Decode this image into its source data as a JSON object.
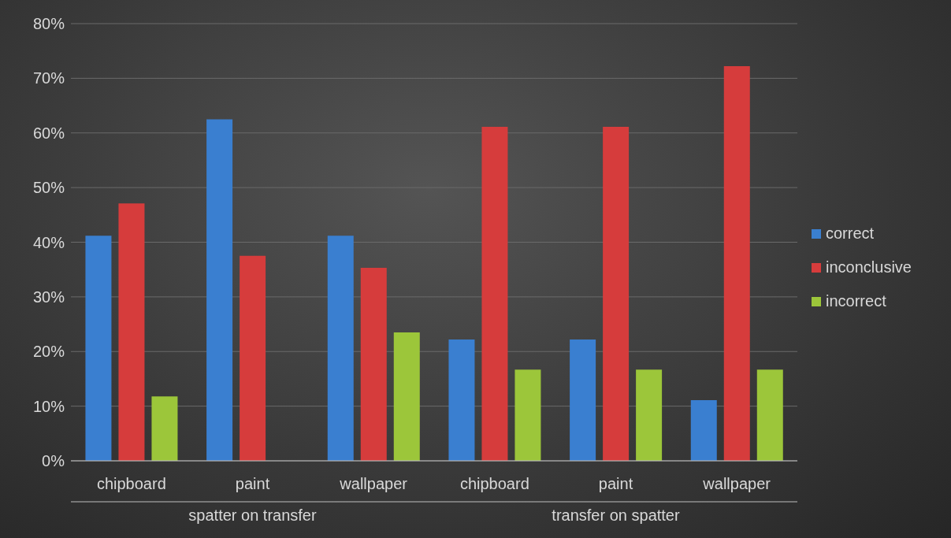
{
  "chart_data": {
    "type": "bar",
    "categories": [
      "chipboard",
      "paint",
      "wallpaper",
      "chipboard",
      "paint",
      "wallpaper"
    ],
    "series": [
      {
        "name": "correct",
        "color": "#3a7fd0",
        "values": [
          41.2,
          62.5,
          41.2,
          22.2,
          22.2,
          11.1
        ]
      },
      {
        "name": "inconclusive",
        "color": "#d63c3c",
        "values": [
          47.1,
          37.5,
          35.3,
          61.1,
          61.1,
          72.2
        ]
      },
      {
        "name": "incorrect",
        "color": "#9cc63a",
        "values": [
          11.8,
          0,
          23.5,
          16.7,
          16.7,
          16.7
        ]
      }
    ],
    "annotations": [
      "spatter on transfer",
      "transfer on spatter"
    ],
    "ylim": [
      0,
      80
    ],
    "yticks": [
      {
        "value": 0,
        "label": "0%"
      },
      {
        "value": 10,
        "label": "10%"
      },
      {
        "value": 20,
        "label": "20%"
      },
      {
        "value": 30,
        "label": "30%"
      },
      {
        "value": 40,
        "label": "40%"
      },
      {
        "value": 50,
        "label": "50%"
      },
      {
        "value": 60,
        "label": "60%"
      },
      {
        "value": 70,
        "label": "70%"
      },
      {
        "value": 80,
        "label": "80%"
      }
    ],
    "grid": "y",
    "legend": "right"
  }
}
